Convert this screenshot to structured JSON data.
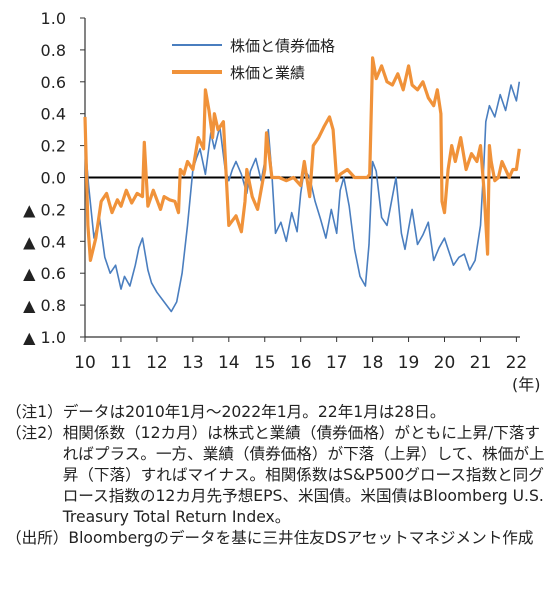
{
  "chart_data": {
    "type": "line",
    "title": "",
    "xlabel": "",
    "ylabel": "",
    "x_unit": "(年)",
    "ylim": [
      -1.0,
      1.0
    ],
    "yticks": [
      1.0,
      0.8,
      0.6,
      0.4,
      0.2,
      0.0,
      -0.2,
      -0.4,
      -0.6,
      -0.8,
      -1.0
    ],
    "ytick_labels": [
      "1.0",
      "0.8",
      "0.6",
      "0.4",
      "0.2",
      "0.0",
      "▲ 0.2",
      "▲ 0.4",
      "▲ 0.6",
      "▲ 0.8",
      "▲ 1.0"
    ],
    "xlim": [
      2010.0,
      2022.1
    ],
    "xticks": [
      2010,
      2011,
      2012,
      2013,
      2014,
      2015,
      2016,
      2017,
      2018,
      2019,
      2020,
      2021,
      2022
    ],
    "xtick_labels": [
      "10",
      "11",
      "12",
      "13",
      "14",
      "15",
      "16",
      "17",
      "18",
      "19",
      "20",
      "21",
      "22"
    ],
    "legend_position": "top-center",
    "grid": false,
    "series": [
      {
        "name": "株価と債券価格",
        "color": "#4a7ebf",
        "x": [
          2010.0,
          2010.1,
          2010.25,
          2010.4,
          2010.55,
          2010.7,
          2010.85,
          2011.0,
          2011.1,
          2011.25,
          2011.4,
          2011.5,
          2011.6,
          2011.75,
          2011.85,
          2012.0,
          2012.2,
          2012.4,
          2012.55,
          2012.7,
          2012.85,
          2013.0,
          2013.1,
          2013.2,
          2013.35,
          2013.5,
          2013.6,
          2013.75,
          2013.9,
          2014.0,
          2014.1,
          2014.2,
          2014.35,
          2014.5,
          2014.6,
          2014.75,
          2014.9,
          2015.0,
          2015.1,
          2015.2,
          2015.3,
          2015.45,
          2015.6,
          2015.75,
          2015.9,
          2016.0,
          2016.1,
          2016.25,
          2016.4,
          2016.55,
          2016.7,
          2016.85,
          2017.0,
          2017.1,
          2017.2,
          2017.35,
          2017.5,
          2017.65,
          2017.8,
          2017.9,
          2018.0,
          2018.1,
          2018.25,
          2018.4,
          2018.5,
          2018.65,
          2018.8,
          2018.9,
          2019.0,
          2019.1,
          2019.25,
          2019.4,
          2019.55,
          2019.7,
          2019.85,
          2020.0,
          2020.1,
          2020.25,
          2020.4,
          2020.55,
          2020.7,
          2020.85,
          2021.0,
          2021.1,
          2021.15,
          2021.25,
          2021.4,
          2021.55,
          2021.7,
          2021.85,
          2022.0,
          2022.08
        ],
        "y": [
          0.22,
          -0.05,
          -0.38,
          -0.25,
          -0.5,
          -0.6,
          -0.55,
          -0.7,
          -0.62,
          -0.68,
          -0.55,
          -0.44,
          -0.38,
          -0.58,
          -0.66,
          -0.72,
          -0.78,
          -0.84,
          -0.78,
          -0.6,
          -0.3,
          0.05,
          0.12,
          0.18,
          0.02,
          0.28,
          0.18,
          0.32,
          0.05,
          -0.02,
          0.05,
          0.1,
          0.02,
          -0.1,
          0.04,
          0.12,
          -0.02,
          0.1,
          0.3,
          0.02,
          -0.35,
          -0.28,
          -0.4,
          -0.22,
          -0.34,
          -0.1,
          0.05,
          0.0,
          -0.15,
          -0.26,
          -0.38,
          -0.2,
          -0.35,
          -0.08,
          0.0,
          -0.18,
          -0.45,
          -0.62,
          -0.68,
          -0.42,
          0.1,
          0.04,
          -0.25,
          -0.3,
          -0.18,
          0.0,
          -0.35,
          -0.45,
          -0.32,
          -0.2,
          -0.42,
          -0.36,
          -0.28,
          -0.52,
          -0.44,
          -0.38,
          -0.45,
          -0.55,
          -0.5,
          -0.48,
          -0.58,
          -0.52,
          -0.3,
          0.1,
          0.35,
          0.45,
          0.38,
          0.52,
          0.42,
          0.58,
          0.48,
          0.6
        ]
      },
      {
        "name": "株価と業績",
        "color": "#f0923a",
        "x": [
          2010.0,
          2010.08,
          2010.15,
          2010.3,
          2010.45,
          2010.6,
          2010.75,
          2010.9,
          2011.0,
          2011.15,
          2011.3,
          2011.45,
          2011.6,
          2011.65,
          2011.75,
          2011.9,
          2012.0,
          2012.1,
          2012.2,
          2012.35,
          2012.5,
          2012.6,
          2012.65,
          2012.75,
          2012.85,
          2013.0,
          2013.15,
          2013.3,
          2013.35,
          2013.45,
          2013.55,
          2013.6,
          2013.7,
          2013.85,
          2014.0,
          2014.2,
          2014.35,
          2014.45,
          2014.5,
          2014.65,
          2014.8,
          2015.0,
          2015.05,
          2015.2,
          2015.4,
          2015.6,
          2015.8,
          2016.0,
          2016.1,
          2016.25,
          2016.35,
          2016.5,
          2016.65,
          2016.8,
          2016.9,
          2017.0,
          2017.1,
          2017.3,
          2017.5,
          2017.7,
          2017.85,
          2017.92,
          2018.0,
          2018.1,
          2018.25,
          2018.4,
          2018.55,
          2018.7,
          2018.85,
          2019.0,
          2019.1,
          2019.25,
          2019.4,
          2019.55,
          2019.7,
          2019.8,
          2019.9,
          2019.93,
          2020.0,
          2020.1,
          2020.2,
          2020.3,
          2020.45,
          2020.6,
          2020.75,
          2020.9,
          2021.0,
          2021.1,
          2021.2,
          2021.25,
          2021.3,
          2021.4,
          2021.5,
          2021.6,
          2021.7,
          2021.8,
          2021.9,
          2022.0,
          2022.08
        ],
        "y": [
          0.38,
          -0.3,
          -0.52,
          -0.38,
          -0.15,
          -0.1,
          -0.22,
          -0.14,
          -0.18,
          -0.08,
          -0.16,
          -0.1,
          -0.12,
          0.22,
          -0.18,
          -0.08,
          -0.14,
          -0.2,
          -0.12,
          -0.14,
          -0.15,
          -0.22,
          0.05,
          0.02,
          0.1,
          0.05,
          0.25,
          0.18,
          0.55,
          0.42,
          0.25,
          0.4,
          0.3,
          0.35,
          -0.3,
          -0.24,
          -0.34,
          -0.15,
          0.05,
          -0.12,
          -0.2,
          0.05,
          0.28,
          0.0,
          0.0,
          -0.02,
          0.0,
          -0.05,
          0.1,
          -0.12,
          0.2,
          0.25,
          0.32,
          0.38,
          0.3,
          -0.02,
          0.02,
          0.05,
          0.0,
          0.0,
          0.0,
          0.02,
          0.75,
          0.62,
          0.7,
          0.6,
          0.58,
          0.65,
          0.55,
          0.7,
          0.58,
          0.55,
          0.6,
          0.5,
          0.45,
          0.55,
          0.4,
          -0.15,
          -0.22,
          0.05,
          0.2,
          0.1,
          0.25,
          0.05,
          0.15,
          0.1,
          0.2,
          -0.08,
          -0.48,
          0.2,
          0.1,
          -0.02,
          0.0,
          0.1,
          0.05,
          0.0,
          0.05,
          0.05,
          0.18
        ]
      }
    ]
  },
  "notes": [
    {
      "tag": "（注1）",
      "text": "データは2010年1月～2022年1月。22年1月は28日。"
    },
    {
      "tag": "（注2）",
      "text": "相関係数（12カ月）は株式と業績（債券価格）がともに上昇/下落すればプラス。一方、業績（債券価格）が下落（上昇）して、株価が上昇（下落）すればマイナス。相関係数はS&P500グロース指数と同グロース指数の12カ月先予想EPS、米国債。米国債はBloomberg U.S. Treasury Total Return Index。"
    },
    {
      "tag": "（出所）",
      "text": "Bloombergのデータを基に三井住友DSアセットマネジメント作成"
    }
  ]
}
